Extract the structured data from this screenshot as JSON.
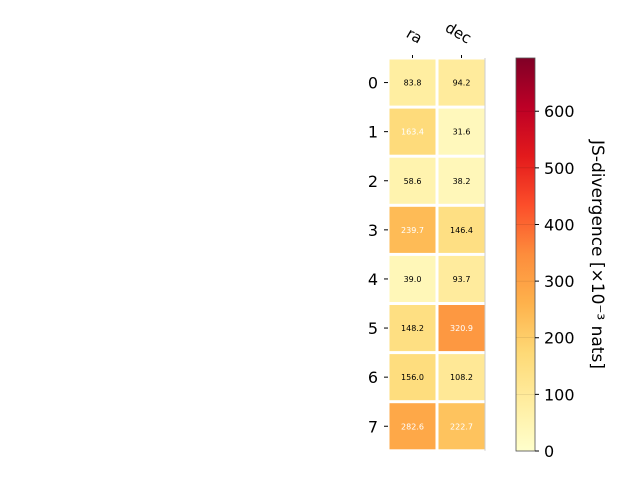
{
  "chart_data": {
    "type": "heatmap",
    "columns": [
      "ra",
      "dec"
    ],
    "rows": [
      "0",
      "1",
      "2",
      "3",
      "4",
      "5",
      "6",
      "7"
    ],
    "values": [
      [
        83.8,
        94.2
      ],
      [
        163.4,
        31.6
      ],
      [
        58.6,
        38.2
      ],
      [
        239.7,
        146.4
      ],
      [
        39.0,
        93.7
      ],
      [
        148.2,
        320.9
      ],
      [
        156.0,
        108.2
      ],
      [
        282.6,
        222.7
      ]
    ],
    "value_labels": [
      [
        "83.8",
        "94.2"
      ],
      [
        "163.4",
        "31.6"
      ],
      [
        "58.6",
        "38.2"
      ],
      [
        "239.7",
        "146.4"
      ],
      [
        "39.0",
        "93.7"
      ],
      [
        "148.2",
        "320.9"
      ],
      [
        "156.0",
        "108.2"
      ],
      [
        "282.6",
        "222.7"
      ]
    ],
    "colorbar": {
      "label": "JS-divergence [×10⁻³ nats]",
      "min": 0,
      "max": 694,
      "ticks": [
        0,
        100,
        200,
        300,
        400,
        500,
        600
      ],
      "tick_labels": [
        "0",
        "100",
        "200",
        "300",
        "400",
        "500",
        "600"
      ],
      "colormap": "YlOrRd"
    },
    "grid": false
  }
}
